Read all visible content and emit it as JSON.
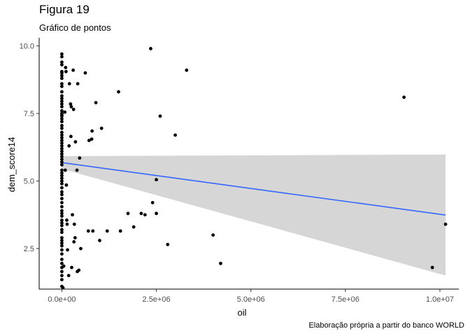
{
  "chart_data": {
    "type": "scatter",
    "title": "Figura 19",
    "subtitle": "Gráfico de pontos",
    "caption": "Elaboração própria a partir do banco WORLD",
    "xlabel": "oil",
    "ylabel": "dem_score14",
    "xlim": [
      -600000,
      10500000
    ],
    "ylim": [
      1.0,
      10.3
    ],
    "x_ticks": [
      0,
      2500000,
      5000000,
      7500000,
      10000000
    ],
    "x_tick_labels": [
      "0.0e+00",
      "2.5e+06",
      "5.0e+06",
      "7.5e+06",
      "1.0e+07"
    ],
    "y_ticks": [
      2.5,
      5.0,
      7.5,
      10.0
    ],
    "y_tick_labels": [
      "2.5",
      "5.0",
      "7.5",
      "10.0"
    ],
    "grid": false,
    "point_color": "#000000",
    "series": [
      {
        "points": [
          [
            0,
            9.7
          ],
          [
            0,
            9.6
          ],
          [
            0,
            9.4
          ],
          [
            0,
            9.3
          ],
          [
            0,
            9.05
          ],
          [
            0,
            9.0
          ],
          [
            0,
            8.9
          ],
          [
            0,
            8.8
          ],
          [
            0,
            8.6
          ],
          [
            0,
            8.5
          ],
          [
            0,
            8.3
          ],
          [
            0,
            8.15
          ],
          [
            0,
            8.05
          ],
          [
            0,
            7.95
          ],
          [
            0,
            7.85
          ],
          [
            0,
            7.75
          ],
          [
            0,
            7.6
          ],
          [
            0,
            7.5
          ],
          [
            0,
            7.45
          ],
          [
            0,
            7.4
          ],
          [
            0,
            7.3
          ],
          [
            0,
            7.2
          ],
          [
            0,
            7.05
          ],
          [
            0,
            6.95
          ],
          [
            0,
            6.8
          ],
          [
            0,
            6.7
          ],
          [
            0,
            6.6
          ],
          [
            0,
            6.5
          ],
          [
            0,
            6.4
          ],
          [
            0,
            6.3
          ],
          [
            0,
            6.2
          ],
          [
            0,
            6.1
          ],
          [
            0,
            6.0
          ],
          [
            0,
            5.9
          ],
          [
            0,
            5.8
          ],
          [
            0,
            5.7
          ],
          [
            0,
            5.6
          ],
          [
            0,
            5.4
          ],
          [
            0,
            5.3
          ],
          [
            0,
            5.2
          ],
          [
            0,
            5.1
          ],
          [
            0,
            5.0
          ],
          [
            0,
            4.9
          ],
          [
            0,
            4.75
          ],
          [
            0,
            4.6
          ],
          [
            0,
            4.5
          ],
          [
            0,
            4.35
          ],
          [
            0,
            4.2
          ],
          [
            0,
            4.05
          ],
          [
            0,
            3.9
          ],
          [
            0,
            3.8
          ],
          [
            0,
            3.7
          ],
          [
            0,
            3.55
          ],
          [
            0,
            3.45
          ],
          [
            0,
            3.35
          ],
          [
            0,
            3.2
          ],
          [
            0,
            3.1
          ],
          [
            0,
            2.9
          ],
          [
            0,
            2.8
          ],
          [
            0,
            2.7
          ],
          [
            0,
            2.6
          ],
          [
            0,
            2.45
          ],
          [
            0,
            2.3
          ],
          [
            0,
            2.1
          ],
          [
            0,
            1.95
          ],
          [
            0,
            1.8
          ],
          [
            0,
            1.65
          ],
          [
            0,
            1.5
          ],
          [
            0,
            1.35
          ],
          [
            0,
            1.1
          ],
          [
            30000,
            1.05
          ],
          [
            50000,
            1.85
          ],
          [
            80000,
            7.55
          ],
          [
            90000,
            5.4
          ],
          [
            100000,
            9.2
          ],
          [
            110000,
            9.05
          ],
          [
            120000,
            4.85
          ],
          [
            130000,
            3.55
          ],
          [
            140000,
            3.4
          ],
          [
            150000,
            2.45
          ],
          [
            180000,
            1.5
          ],
          [
            190000,
            6.3
          ],
          [
            200000,
            8.6
          ],
          [
            230000,
            7.85
          ],
          [
            240000,
            6.65
          ],
          [
            250000,
            7.75
          ],
          [
            260000,
            1.8
          ],
          [
            280000,
            3.75
          ],
          [
            300000,
            9.1
          ],
          [
            310000,
            7.65
          ],
          [
            320000,
            2.75
          ],
          [
            330000,
            3.4
          ],
          [
            350000,
            2.9
          ],
          [
            360000,
            6.45
          ],
          [
            400000,
            5.4
          ],
          [
            410000,
            1.65
          ],
          [
            420000,
            8.6
          ],
          [
            450000,
            1.7
          ],
          [
            470000,
            5.85
          ],
          [
            500000,
            2.5
          ],
          [
            620000,
            9.0
          ],
          [
            700000,
            3.15
          ],
          [
            720000,
            6.5
          ],
          [
            790000,
            6.55
          ],
          [
            800000,
            6.85
          ],
          [
            820000,
            3.15
          ],
          [
            900000,
            7.9
          ],
          [
            1000000,
            2.8
          ],
          [
            1050000,
            6.95
          ],
          [
            1200000,
            3.15
          ],
          [
            1500000,
            8.3
          ],
          [
            1550000,
            3.15
          ],
          [
            1750000,
            3.8
          ],
          [
            1900000,
            3.3
          ],
          [
            2100000,
            3.8
          ],
          [
            2200000,
            3.75
          ],
          [
            2350000,
            9.9
          ],
          [
            2400000,
            4.2
          ],
          [
            2500000,
            5.05
          ],
          [
            2500000,
            3.8
          ],
          [
            2600000,
            7.4
          ],
          [
            2800000,
            2.65
          ],
          [
            3000000,
            6.7
          ],
          [
            3300000,
            9.1
          ],
          [
            4000000,
            3.0
          ],
          [
            4200000,
            1.95
          ],
          [
            9050000,
            8.1
          ],
          [
            9800000,
            1.8
          ],
          [
            10150000,
            3.4
          ]
        ]
      }
    ],
    "fit": {
      "method": "lm",
      "color": "#3366FF",
      "band_color": "#D6D6D6",
      "x_range": [
        0,
        10150000
      ],
      "line": [
        5.68,
        3.74
      ],
      "band_lower": [
        5.45,
        1.5
      ],
      "band_upper": [
        5.92,
        5.98
      ]
    }
  }
}
